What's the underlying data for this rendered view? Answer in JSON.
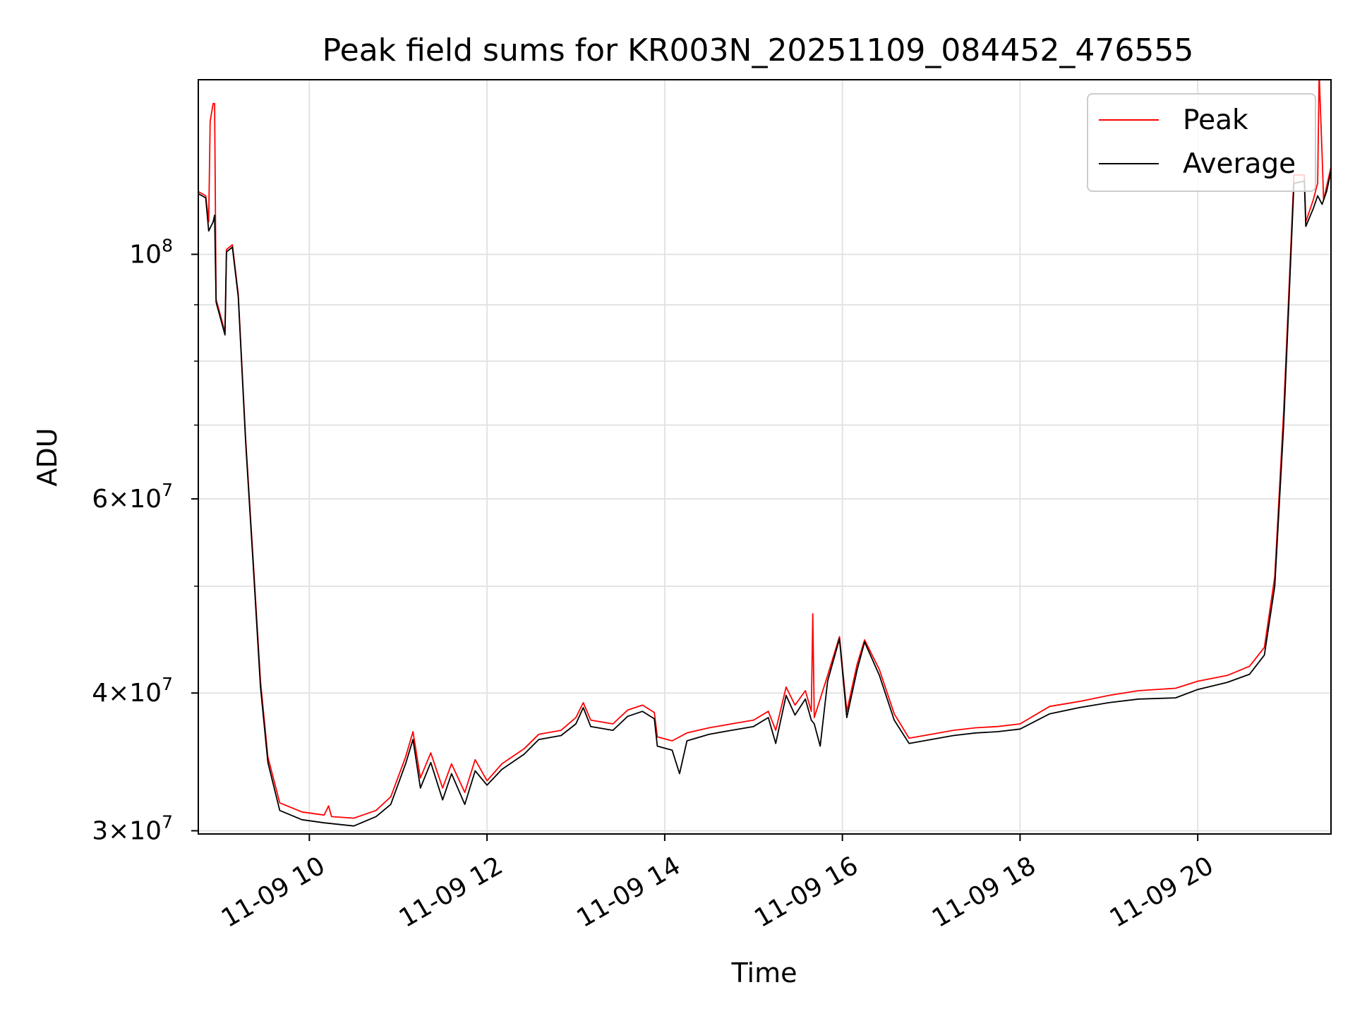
{
  "chart_data": {
    "type": "line",
    "title": "Peak field sums for KR003N_20251109_084452_476555",
    "xlabel": "Time",
    "ylabel": "ADU",
    "x_ticks": [
      "11-09 10",
      "11-09 12",
      "11-09 14",
      "11-09 16",
      "11-09 18",
      "11-09 20"
    ],
    "x_range": [
      "2025-11-09 08:45",
      "2025-11-09 21:30"
    ],
    "y_scale": "log",
    "y_range": [
      29800000,
      144000000
    ],
    "y_ticks": [
      {
        "value": 30000000,
        "mantissa": "3",
        "exponent": "7"
      },
      {
        "value": 40000000,
        "mantissa": "4",
        "exponent": "7"
      },
      {
        "value": 60000000,
        "mantissa": "6",
        "exponent": "7"
      },
      {
        "value": 100000000,
        "mantissa": "",
        "exponent": "8"
      }
    ],
    "y_minor_ticks": [
      50000000,
      70000000,
      80000000,
      90000000
    ],
    "grid": true,
    "legend_position": "top-right",
    "series": [
      {
        "name": "Peak",
        "color": "#ff0000",
        "points": [
          [
            "2025-11-09 08:45",
            114000000
          ],
          [
            "2025-11-09 08:50",
            113000000
          ],
          [
            "2025-11-09 08:52",
            107000000
          ],
          [
            "2025-11-09 08:53",
            132000000
          ],
          [
            "2025-11-09 08:55",
            137000000
          ],
          [
            "2025-11-09 08:56",
            137000000
          ],
          [
            "2025-11-09 08:57",
            91000000
          ],
          [
            "2025-11-09 09:03",
            85000000
          ],
          [
            "2025-11-09 09:04",
            101000000
          ],
          [
            "2025-11-09 09:08",
            102000000
          ],
          [
            "2025-11-09 09:12",
            92000000
          ],
          [
            "2025-11-09 09:17",
            68000000
          ],
          [
            "2025-11-09 09:22",
            53000000
          ],
          [
            "2025-11-09 09:27",
            41000000
          ],
          [
            "2025-11-09 09:32",
            35000000
          ],
          [
            "2025-11-09 09:40",
            31800000
          ],
          [
            "2025-11-09 09:55",
            31200000
          ],
          [
            "2025-11-09 10:10",
            31000000
          ],
          [
            "2025-11-09 10:13",
            31600000
          ],
          [
            "2025-11-09 10:15",
            30900000
          ],
          [
            "2025-11-09 10:30",
            30800000
          ],
          [
            "2025-11-09 10:45",
            31300000
          ],
          [
            "2025-11-09 10:55",
            32200000
          ],
          [
            "2025-11-09 11:05",
            35000000
          ],
          [
            "2025-11-09 11:10",
            36900000
          ],
          [
            "2025-11-09 11:15",
            33500000
          ],
          [
            "2025-11-09 11:22",
            35300000
          ],
          [
            "2025-11-09 11:30",
            32800000
          ],
          [
            "2025-11-09 11:36",
            34500000
          ],
          [
            "2025-11-09 11:45",
            32500000
          ],
          [
            "2025-11-09 11:52",
            34800000
          ],
          [
            "2025-11-09 12:00",
            33300000
          ],
          [
            "2025-11-09 12:10",
            34500000
          ],
          [
            "2025-11-09 12:25",
            35600000
          ],
          [
            "2025-11-09 12:35",
            36700000
          ],
          [
            "2025-11-09 12:50",
            37000000
          ],
          [
            "2025-11-09 13:00",
            38000000
          ],
          [
            "2025-11-09 13:05",
            39200000
          ],
          [
            "2025-11-09 13:10",
            37800000
          ],
          [
            "2025-11-09 13:25",
            37500000
          ],
          [
            "2025-11-09 13:35",
            38600000
          ],
          [
            "2025-11-09 13:45",
            39000000
          ],
          [
            "2025-11-09 13:53",
            38400000
          ],
          [
            "2025-11-09 13:55",
            36500000
          ],
          [
            "2025-11-09 14:05",
            36200000
          ],
          [
            "2025-11-09 14:15",
            36800000
          ],
          [
            "2025-11-09 14:30",
            37200000
          ],
          [
            "2025-11-09 14:45",
            37500000
          ],
          [
            "2025-11-09 15:00",
            37800000
          ],
          [
            "2025-11-09 15:10",
            38500000
          ],
          [
            "2025-11-09 15:15",
            37000000
          ],
          [
            "2025-11-09 15:22",
            40500000
          ],
          [
            "2025-11-09 15:28",
            39000000
          ],
          [
            "2025-11-09 15:35",
            40200000
          ],
          [
            "2025-11-09 15:39",
            38500000
          ],
          [
            "2025-11-09 15:40",
            47200000
          ],
          [
            "2025-11-09 15:41",
            38000000
          ],
          [
            "2025-11-09 15:50",
            41500000
          ],
          [
            "2025-11-09 15:58",
            45000000
          ],
          [
            "2025-11-09 16:03",
            38500000
          ],
          [
            "2025-11-09 16:10",
            42500000
          ],
          [
            "2025-11-09 16:15",
            44700000
          ],
          [
            "2025-11-09 16:25",
            42000000
          ],
          [
            "2025-11-09 16:35",
            38300000
          ],
          [
            "2025-11-09 16:45",
            36400000
          ],
          [
            "2025-11-09 17:00",
            36700000
          ],
          [
            "2025-11-09 17:15",
            37000000
          ],
          [
            "2025-11-09 17:30",
            37200000
          ],
          [
            "2025-11-09 17:45",
            37300000
          ],
          [
            "2025-11-09 18:00",
            37500000
          ],
          [
            "2025-11-09 18:20",
            38900000
          ],
          [
            "2025-11-09 18:40",
            39300000
          ],
          [
            "2025-11-09 19:00",
            39800000
          ],
          [
            "2025-11-09 19:20",
            40200000
          ],
          [
            "2025-11-09 19:45",
            40400000
          ],
          [
            "2025-11-09 20:00",
            41000000
          ],
          [
            "2025-11-09 20:20",
            41500000
          ],
          [
            "2025-11-09 20:35",
            42300000
          ],
          [
            "2025-11-09 20:45",
            44000000
          ],
          [
            "2025-11-09 20:52",
            51000000
          ],
          [
            "2025-11-09 20:58",
            72000000
          ],
          [
            "2025-11-09 21:05",
            118000000
          ],
          [
            "2025-11-09 21:12",
            118000000
          ],
          [
            "2025-11-09 21:13",
            107000000
          ],
          [
            "2025-11-09 21:18",
            112000000
          ],
          [
            "2025-11-09 21:21",
            116000000
          ],
          [
            "2025-11-09 21:22",
            146000000
          ],
          [
            "2025-11-09 21:24",
            123000000
          ],
          [
            "2025-11-09 21:25",
            112000000
          ],
          [
            "2025-11-09 21:30",
            120000000
          ]
        ]
      },
      {
        "name": "Average",
        "color": "#000000",
        "points": [
          [
            "2025-11-09 08:45",
            113500000
          ],
          [
            "2025-11-09 08:50",
            112500000
          ],
          [
            "2025-11-09 08:52",
            105000000
          ],
          [
            "2025-11-09 08:55",
            107000000
          ],
          [
            "2025-11-09 08:56",
            108500000
          ],
          [
            "2025-11-09 08:57",
            90500000
          ],
          [
            "2025-11-09 09:03",
            84500000
          ],
          [
            "2025-11-09 09:04",
            100500000
          ],
          [
            "2025-11-09 09:08",
            101500000
          ],
          [
            "2025-11-09 09:12",
            91500000
          ],
          [
            "2025-11-09 09:17",
            67500000
          ],
          [
            "2025-11-09 09:22",
            52500000
          ],
          [
            "2025-11-09 09:27",
            40500000
          ],
          [
            "2025-11-09 09:32",
            34600000
          ],
          [
            "2025-11-09 09:40",
            31300000
          ],
          [
            "2025-11-09 09:55",
            30700000
          ],
          [
            "2025-11-09 10:10",
            30500000
          ],
          [
            "2025-11-09 10:30",
            30300000
          ],
          [
            "2025-11-09 10:45",
            30900000
          ],
          [
            "2025-11-09 10:55",
            31700000
          ],
          [
            "2025-11-09 11:05",
            34500000
          ],
          [
            "2025-11-09 11:10",
            36300000
          ],
          [
            "2025-11-09 11:15",
            32800000
          ],
          [
            "2025-11-09 11:22",
            34600000
          ],
          [
            "2025-11-09 11:30",
            32000000
          ],
          [
            "2025-11-09 11:36",
            33800000
          ],
          [
            "2025-11-09 11:45",
            31700000
          ],
          [
            "2025-11-09 11:52",
            34000000
          ],
          [
            "2025-11-09 12:00",
            33000000
          ],
          [
            "2025-11-09 12:10",
            34100000
          ],
          [
            "2025-11-09 12:25",
            35200000
          ],
          [
            "2025-11-09 12:35",
            36300000
          ],
          [
            "2025-11-09 12:50",
            36600000
          ],
          [
            "2025-11-09 13:00",
            37500000
          ],
          [
            "2025-11-09 13:05",
            38800000
          ],
          [
            "2025-11-09 13:10",
            37300000
          ],
          [
            "2025-11-09 13:25",
            37000000
          ],
          [
            "2025-11-09 13:35",
            38100000
          ],
          [
            "2025-11-09 13:45",
            38500000
          ],
          [
            "2025-11-09 13:53",
            37900000
          ],
          [
            "2025-11-09 13:55",
            35800000
          ],
          [
            "2025-11-09 14:05",
            35500000
          ],
          [
            "2025-11-09 14:10",
            33800000
          ],
          [
            "2025-11-09 14:15",
            36200000
          ],
          [
            "2025-11-09 14:30",
            36700000
          ],
          [
            "2025-11-09 14:45",
            37000000
          ],
          [
            "2025-11-09 15:00",
            37300000
          ],
          [
            "2025-11-09 15:10",
            38000000
          ],
          [
            "2025-11-09 15:15",
            36000000
          ],
          [
            "2025-11-09 15:22",
            39800000
          ],
          [
            "2025-11-09 15:28",
            38200000
          ],
          [
            "2025-11-09 15:35",
            39500000
          ],
          [
            "2025-11-09 15:39",
            37800000
          ],
          [
            "2025-11-09 15:41",
            37500000
          ],
          [
            "2025-11-09 15:45",
            35800000
          ],
          [
            "2025-11-09 15:50",
            41000000
          ],
          [
            "2025-11-09 15:58",
            44800000
          ],
          [
            "2025-11-09 16:03",
            38000000
          ],
          [
            "2025-11-09 16:10",
            42000000
          ],
          [
            "2025-11-09 16:15",
            44500000
          ],
          [
            "2025-11-09 16:25",
            41500000
          ],
          [
            "2025-11-09 16:35",
            37800000
          ],
          [
            "2025-11-09 16:45",
            36000000
          ],
          [
            "2025-11-09 17:00",
            36300000
          ],
          [
            "2025-11-09 17:15",
            36600000
          ],
          [
            "2025-11-09 17:30",
            36800000
          ],
          [
            "2025-11-09 17:45",
            36900000
          ],
          [
            "2025-11-09 18:00",
            37100000
          ],
          [
            "2025-11-09 18:20",
            38300000
          ],
          [
            "2025-11-09 18:40",
            38800000
          ],
          [
            "2025-11-09 19:00",
            39200000
          ],
          [
            "2025-11-09 19:20",
            39500000
          ],
          [
            "2025-11-09 19:45",
            39600000
          ],
          [
            "2025-11-09 20:00",
            40300000
          ],
          [
            "2025-11-09 20:20",
            40900000
          ],
          [
            "2025-11-09 20:35",
            41600000
          ],
          [
            "2025-11-09 20:45",
            43300000
          ],
          [
            "2025-11-09 20:52",
            50000000
          ],
          [
            "2025-11-09 20:58",
            70000000
          ],
          [
            "2025-11-09 21:05",
            116000000
          ],
          [
            "2025-11-09 21:12",
            116500000
          ],
          [
            "2025-11-09 21:13",
            106000000
          ],
          [
            "2025-11-09 21:18",
            110000000
          ],
          [
            "2025-11-09 21:21",
            113000000
          ],
          [
            "2025-11-09 21:24",
            111000000
          ],
          [
            "2025-11-09 21:27",
            114000000
          ],
          [
            "2025-11-09 21:30",
            119000000
          ]
        ]
      }
    ]
  }
}
